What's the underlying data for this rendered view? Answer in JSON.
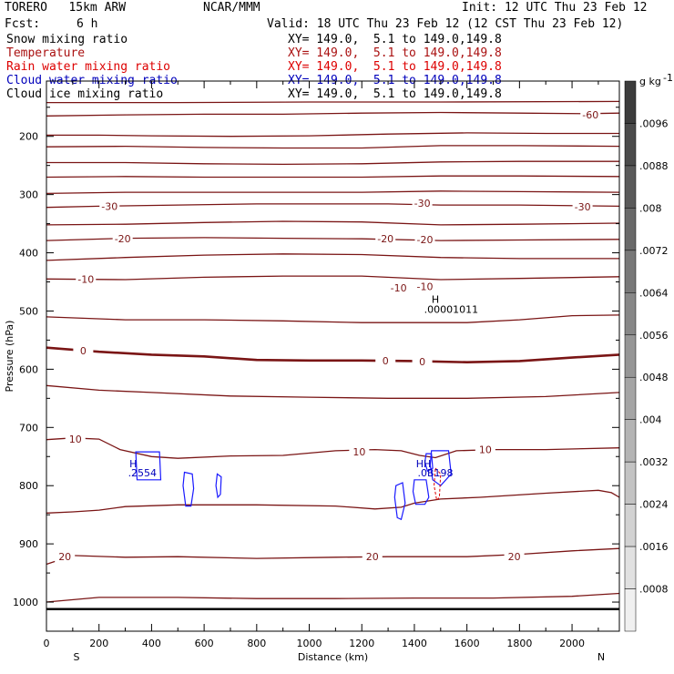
{
  "header": {
    "model": "TORERO   15km ARW",
    "org": "NCAR/MMM",
    "init": "Init: 12 UTC Thu 23 Feb 12",
    "fcst_label": "Fcst:",
    "fcst_value": "6 h",
    "valid": "Valid: 18 UTC Thu 23 Feb 12 (12 CST Thu 23 Feb 12)"
  },
  "legend": [
    {
      "name": "Snow mixing ratio",
      "xy": "XY= 149.0,  5.1 to 149.0,149.8",
      "color": "#000000"
    },
    {
      "name": "Temperature",
      "xy": "XY= 149.0,  5.1 to 149.0,149.8",
      "color": "#aa1111"
    },
    {
      "name": "Rain water mixing ratio",
      "xy": "XY= 149.0,  5.1 to 149.0,149.8",
      "color": "#dd0000"
    },
    {
      "name": "Cloud water mixing ratio",
      "xy": "XY= 149.0,  5.1 to 149.0,149.8",
      "color": "#0000bb"
    },
    {
      "name": "Cloud ice mixing ratio",
      "xy": "XY= 149.0,  5.1 to 149.0,149.8",
      "color": "#000000"
    }
  ],
  "colorbar": {
    "unit": "g kg",
    "unit_exp": "-1",
    "labels": [
      ".0096",
      ".0088",
      ".008",
      ".0072",
      ".0064",
      ".0056",
      ".0048",
      ".004",
      ".0032",
      ".0024",
      ".0016",
      ".0008"
    ]
  },
  "chart_data": {
    "type": "contour",
    "xlabel": "Distance (km)",
    "ylabel": "Pressure (hPa)",
    "x_left_label": "S",
    "x_right_label": "N",
    "xlim": [
      0,
      2180
    ],
    "ylim": [
      1050,
      105
    ],
    "xticks": [
      0,
      200,
      400,
      600,
      800,
      1000,
      1200,
      1400,
      1600,
      1800,
      2000
    ],
    "yticks": [
      200,
      300,
      400,
      500,
      600,
      700,
      800,
      900,
      1000
    ],
    "surface_pressure": 1012,
    "temperature_contours": [
      {
        "value": -65,
        "points": [
          [
            0,
            142
          ],
          [
            500,
            142
          ],
          [
            1000,
            141
          ],
          [
            1500,
            141
          ],
          [
            2180,
            140
          ]
        ]
      },
      {
        "value": -60,
        "points": [
          [
            0,
            165
          ],
          [
            300,
            163
          ],
          [
            600,
            162
          ],
          [
            900,
            162
          ],
          [
            1200,
            160
          ],
          [
            1500,
            159
          ],
          [
            1800,
            160
          ],
          [
            2050,
            161
          ],
          [
            2180,
            160
          ]
        ]
      },
      {
        "value": -55,
        "points": [
          [
            0,
            198
          ],
          [
            200,
            198
          ],
          [
            400,
            199
          ],
          [
            700,
            200
          ],
          [
            1000,
            199
          ],
          [
            1300,
            196
          ],
          [
            1600,
            194
          ],
          [
            1900,
            195
          ],
          [
            2180,
            195
          ]
        ]
      },
      {
        "value": -50,
        "points": [
          [
            0,
            218
          ],
          [
            300,
            217
          ],
          [
            600,
            219
          ],
          [
            900,
            220
          ],
          [
            1200,
            220
          ],
          [
            1500,
            216
          ],
          [
            1800,
            216
          ],
          [
            2180,
            217
          ]
        ]
      },
      {
        "value": -45,
        "points": [
          [
            0,
            245
          ],
          [
            300,
            245
          ],
          [
            600,
            247
          ],
          [
            900,
            248
          ],
          [
            1200,
            247
          ],
          [
            1500,
            244
          ],
          [
            1800,
            243
          ],
          [
            2180,
            243
          ]
        ]
      },
      {
        "value": -40,
        "points": [
          [
            0,
            270
          ],
          [
            300,
            269
          ],
          [
            600,
            270
          ],
          [
            900,
            270
          ],
          [
            1200,
            270
          ],
          [
            1500,
            268
          ],
          [
            1800,
            268
          ],
          [
            2180,
            269
          ]
        ]
      },
      {
        "value": -35,
        "points": [
          [
            0,
            298
          ],
          [
            300,
            296
          ],
          [
            600,
            296
          ],
          [
            900,
            296
          ],
          [
            1200,
            296
          ],
          [
            1500,
            294
          ],
          [
            1800,
            295
          ],
          [
            2180,
            296
          ]
        ]
      },
      {
        "value": -30,
        "points": [
          [
            0,
            322
          ],
          [
            200,
            320
          ],
          [
            500,
            318
          ],
          [
            800,
            316
          ],
          [
            1100,
            316
          ],
          [
            1300,
            316
          ],
          [
            1500,
            318
          ],
          [
            1800,
            318
          ],
          [
            2180,
            320
          ]
        ]
      },
      {
        "value": -25,
        "points": [
          [
            0,
            352
          ],
          [
            300,
            351
          ],
          [
            600,
            348
          ],
          [
            900,
            346
          ],
          [
            1200,
            347
          ],
          [
            1500,
            352
          ],
          [
            1800,
            351
          ],
          [
            2180,
            349
          ]
        ]
      },
      {
        "value": -20,
        "points": [
          [
            0,
            379
          ],
          [
            300,
            375
          ],
          [
            600,
            374
          ],
          [
            900,
            375
          ],
          [
            1200,
            376
          ],
          [
            1500,
            379
          ],
          [
            1800,
            378
          ],
          [
            2180,
            377
          ]
        ]
      },
      {
        "value": -15,
        "points": [
          [
            0,
            413
          ],
          [
            300,
            408
          ],
          [
            600,
            404
          ],
          [
            900,
            402
          ],
          [
            1200,
            403
          ],
          [
            1500,
            408
          ],
          [
            1800,
            410
          ],
          [
            2180,
            410
          ]
        ]
      },
      {
        "value": -10,
        "points": [
          [
            0,
            445
          ],
          [
            300,
            446
          ],
          [
            600,
            442
          ],
          [
            900,
            440
          ],
          [
            1200,
            440
          ],
          [
            1500,
            446
          ],
          [
            1800,
            444
          ],
          [
            2180,
            441
          ]
        ]
      },
      {
        "value": -5,
        "points": [
          [
            0,
            510
          ],
          [
            300,
            515
          ],
          [
            600,
            515
          ],
          [
            900,
            517
          ],
          [
            1200,
            520
          ],
          [
            1400,
            520
          ],
          [
            1600,
            520
          ],
          [
            1800,
            515
          ],
          [
            2000,
            508
          ],
          [
            2180,
            507
          ]
        ]
      },
      {
        "value": 0,
        "bold": true,
        "points": [
          [
            0,
            563
          ],
          [
            200,
            570
          ],
          [
            400,
            575
          ],
          [
            600,
            578
          ],
          [
            800,
            584
          ],
          [
            1000,
            585
          ],
          [
            1200,
            585
          ],
          [
            1400,
            586
          ],
          [
            1600,
            588
          ],
          [
            1800,
            586
          ],
          [
            2000,
            580
          ],
          [
            2180,
            575
          ]
        ]
      },
      {
        "value": 5,
        "points": [
          [
            0,
            628
          ],
          [
            200,
            636
          ],
          [
            400,
            640
          ],
          [
            700,
            646
          ],
          [
            1000,
            648
          ],
          [
            1300,
            650
          ],
          [
            1600,
            650
          ],
          [
            1900,
            647
          ],
          [
            2180,
            640
          ]
        ]
      },
      {
        "value": 10,
        "points": [
          [
            0,
            721
          ],
          [
            100,
            718
          ],
          [
            200,
            720
          ],
          [
            280,
            738
          ],
          [
            400,
            750
          ],
          [
            500,
            753
          ],
          [
            700,
            749
          ],
          [
            900,
            748
          ],
          [
            1100,
            740
          ],
          [
            1250,
            738
          ],
          [
            1350,
            740
          ],
          [
            1420,
            748
          ],
          [
            1480,
            752
          ],
          [
            1560,
            740
          ],
          [
            1700,
            738
          ],
          [
            1900,
            738
          ],
          [
            2180,
            735
          ]
        ]
      },
      {
        "value": 15,
        "points": [
          [
            0,
            847
          ],
          [
            100,
            845
          ],
          [
            200,
            842
          ],
          [
            300,
            836
          ],
          [
            500,
            833
          ],
          [
            800,
            833
          ],
          [
            1100,
            835
          ],
          [
            1250,
            840
          ],
          [
            1350,
            837
          ],
          [
            1400,
            830
          ],
          [
            1500,
            823
          ],
          [
            1650,
            820
          ],
          [
            1900,
            813
          ],
          [
            2100,
            808
          ],
          [
            2150,
            812
          ],
          [
            2180,
            820
          ]
        ]
      },
      {
        "value": 20,
        "points": [
          [
            0,
            935
          ],
          [
            100,
            920
          ],
          [
            300,
            923
          ],
          [
            500,
            922
          ],
          [
            800,
            925
          ],
          [
            1100,
            923
          ],
          [
            1300,
            922
          ],
          [
            1600,
            922
          ],
          [
            1800,
            918
          ],
          [
            2000,
            912
          ],
          [
            2180,
            908
          ]
        ]
      },
      {
        "value": 25,
        "points": [
          [
            0,
            1000
          ],
          [
            200,
            992
          ],
          [
            500,
            992
          ],
          [
            800,
            994
          ],
          [
            1100,
            994
          ],
          [
            1400,
            993
          ],
          [
            1700,
            993
          ],
          [
            2000,
            990
          ],
          [
            2180,
            985
          ]
        ]
      }
    ],
    "temperature_labels": [
      {
        "text": "-60",
        "x": 2070,
        "p": 163
      },
      {
        "text": "-30",
        "x": 240,
        "p": 320
      },
      {
        "text": "-30",
        "x": 1430,
        "p": 315
      },
      {
        "text": "-30",
        "x": 2040,
        "p": 321
      },
      {
        "text": "-20",
        "x": 290,
        "p": 376
      },
      {
        "text": "-20",
        "x": 1290,
        "p": 376
      },
      {
        "text": "-20",
        "x": 1440,
        "p": 377
      },
      {
        "text": "-10",
        "x": 150,
        "p": 445
      },
      {
        "text": "-10",
        "x": 1340,
        "p": 460
      },
      {
        "text": "-10",
        "x": 1440,
        "p": 458
      },
      {
        "text": "0",
        "x": 140,
        "p": 568
      },
      {
        "text": "0",
        "x": 1290,
        "p": 585
      },
      {
        "text": "0",
        "x": 1430,
        "p": 587
      },
      {
        "text": "10",
        "x": 110,
        "p": 720
      },
      {
        "text": "10",
        "x": 1190,
        "p": 742
      },
      {
        "text": "10",
        "x": 1670,
        "p": 738
      },
      {
        "text": "20",
        "x": 70,
        "p": 922
      },
      {
        "text": "20",
        "x": 1240,
        "p": 922
      },
      {
        "text": "20",
        "x": 1780,
        "p": 922
      }
    ],
    "cloud_water_contours": [
      {
        "points": [
          [
            340,
            742
          ],
          [
            430,
            742
          ],
          [
            435,
            790
          ],
          [
            345,
            790
          ],
          [
            340,
            742
          ]
        ]
      },
      {
        "points": [
          [
            525,
            777
          ],
          [
            555,
            780
          ],
          [
            560,
            805
          ],
          [
            550,
            835
          ],
          [
            530,
            835
          ],
          [
            520,
            800
          ],
          [
            525,
            777
          ]
        ]
      },
      {
        "points": [
          [
            650,
            780
          ],
          [
            665,
            785
          ],
          [
            662,
            815
          ],
          [
            652,
            820
          ],
          [
            645,
            800
          ],
          [
            650,
            780
          ]
        ]
      },
      {
        "points": [
          [
            1330,
            800
          ],
          [
            1355,
            795
          ],
          [
            1365,
            830
          ],
          [
            1350,
            858
          ],
          [
            1335,
            855
          ],
          [
            1325,
            820
          ],
          [
            1330,
            800
          ]
        ]
      },
      {
        "points": [
          [
            1400,
            790
          ],
          [
            1445,
            790
          ],
          [
            1455,
            820
          ],
          [
            1440,
            832
          ],
          [
            1405,
            832
          ],
          [
            1395,
            810
          ],
          [
            1400,
            790
          ]
        ]
      },
      {
        "points": [
          [
            1465,
            740
          ],
          [
            1530,
            740
          ],
          [
            1540,
            780
          ],
          [
            1500,
            800
          ],
          [
            1470,
            790
          ],
          [
            1460,
            765
          ],
          [
            1465,
            740
          ]
        ]
      },
      {
        "points": [
          [
            1445,
            745
          ],
          [
            1465,
            745
          ],
          [
            1470,
            770
          ],
          [
            1450,
            775
          ],
          [
            1440,
            760
          ],
          [
            1445,
            745
          ]
        ]
      }
    ],
    "rain_water_contours": [
      {
        "points": [
          [
            1480,
            770
          ],
          [
            1500,
            780
          ],
          [
            1495,
            820
          ],
          [
            1485,
            825
          ],
          [
            1475,
            800
          ],
          [
            1480,
            770
          ]
        ]
      }
    ],
    "extrema_labels": [
      {
        "text": "H",
        "x": 1480,
        "p": 480,
        "color": "#000000"
      },
      {
        "text": ".00001011",
        "x": 1540,
        "p": 497,
        "color": "#000000"
      },
      {
        "text": "H",
        "x": 330,
        "p": 762,
        "color": "#0000bb"
      },
      {
        "text": ".2554",
        "x": 365,
        "p": 778,
        "color": "#0000bb"
      },
      {
        "text": "HH",
        "x": 1435,
        "p": 762,
        "color": "#0000bb"
      },
      {
        "text": ".0B198",
        "x": 1480,
        "p": 778,
        "color": "#0000bb"
      }
    ]
  }
}
